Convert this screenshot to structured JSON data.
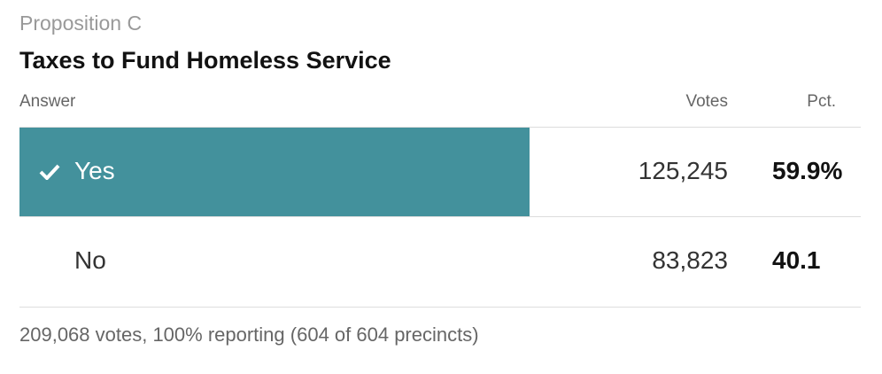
{
  "kicker": "Proposition C",
  "title": "Taxes to Fund Homeless Service",
  "table": {
    "headers": {
      "answer": "Answer",
      "votes": "Votes",
      "pct": "Pct."
    },
    "rows": [
      {
        "answer": "Yes",
        "votes": "125,245",
        "pct": "59.9%",
        "share": 59.9,
        "winner": true,
        "icon": "checkmark-icon"
      },
      {
        "answer": "No",
        "votes": "83,823",
        "pct": "40.1",
        "share": 40.1,
        "winner": false
      }
    ]
  },
  "footer": "209,068 votes, 100% reporting (604 of 604 precincts)",
  "colors": {
    "winner_bar": "#43919c",
    "winner_text": "#ffffff",
    "text": "#333333",
    "muted": "#999999"
  }
}
